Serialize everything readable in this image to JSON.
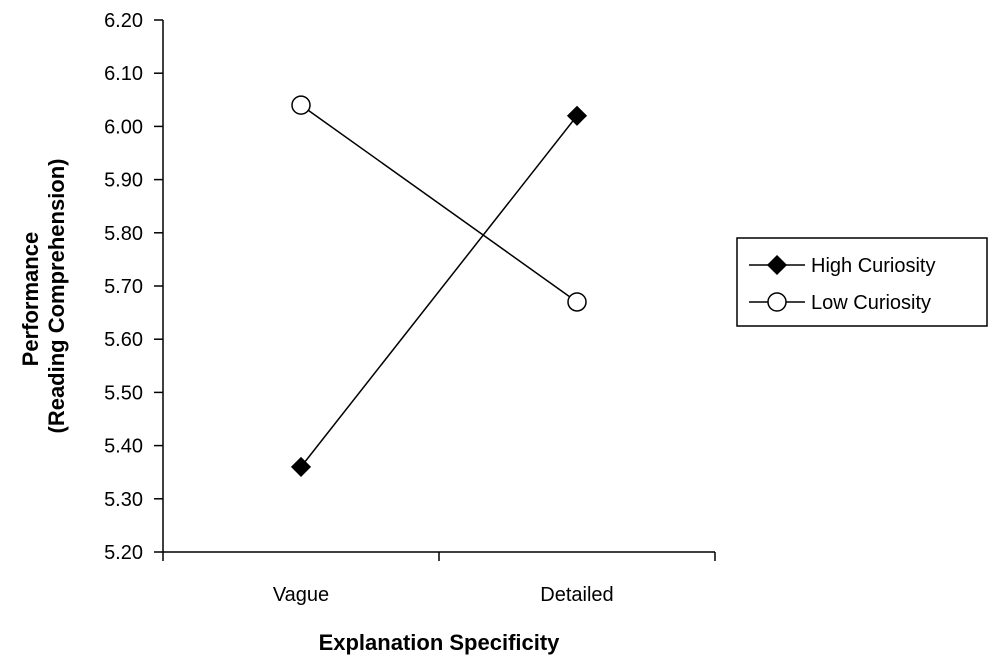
{
  "chart_data": {
    "type": "line",
    "xlabel": "Explanation Specificity",
    "ylabel_lines": [
      "Performance",
      "(Reading Comprehension)"
    ],
    "categories": [
      "Vague",
      "Detailed"
    ],
    "ylim": [
      5.2,
      6.2
    ],
    "yticks": [
      "5.20",
      "5.30",
      "5.40",
      "5.50",
      "5.60",
      "5.70",
      "5.80",
      "5.90",
      "6.00",
      "6.10",
      "6.20"
    ],
    "grid": false,
    "legend_position": "right",
    "series": [
      {
        "name": "High Curiosity",
        "values": [
          5.36,
          6.02
        ],
        "marker": "diamond",
        "marker_fill": "#000000"
      },
      {
        "name": "Low Curiosity",
        "values": [
          6.04,
          5.67
        ],
        "marker": "circle",
        "marker_fill": "#ffffff"
      }
    ]
  }
}
